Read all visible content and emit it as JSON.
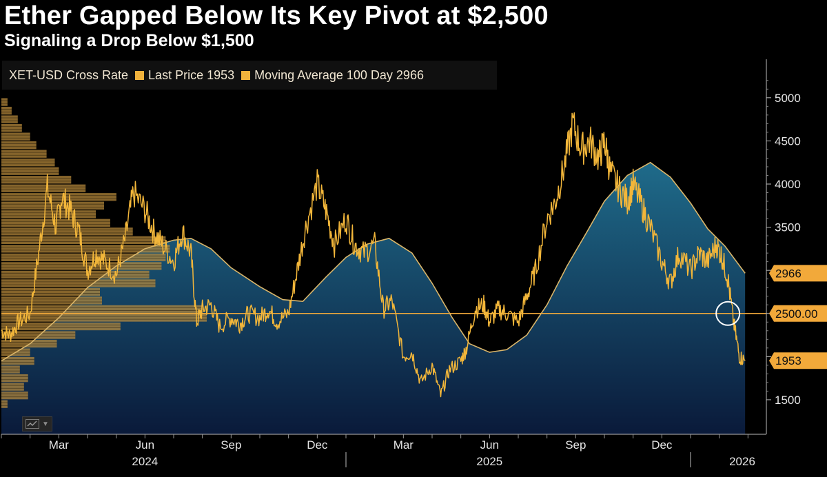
{
  "header": {
    "title": "Ether Gapped Below Its Key Pivot at $2,500",
    "subtitle": "Signaling a Drop Below $1,500"
  },
  "legend": {
    "items": [
      "XET-USD Cross Rate",
      "Last Price 1953",
      "Moving Average 100 Day 2966"
    ]
  },
  "colors": {
    "background": "#000000",
    "price": "#f2b63a",
    "ma": "#d9b56a",
    "pivot": "#f2a93a",
    "fill_top": "#1f6b8a",
    "fill_bottom": "#0a1a3a",
    "profile": "#b98a3c"
  },
  "chart_data": {
    "type": "line",
    "title": "Ether Gapped Below Its Key Pivot at $2,500",
    "subtitle": "Signaling a Drop Below $1,500",
    "x_tick_labels": [
      "Mar",
      "Jun",
      "Sep",
      "Dec",
      "Mar",
      "Jun",
      "Sep",
      "Dec"
    ],
    "x_tick_month_index": [
      2,
      5,
      8,
      11,
      14,
      17,
      20,
      23
    ],
    "year_labels": [
      "2024",
      "2025",
      "2026"
    ],
    "year_label_month_index": [
      5,
      17,
      25.8
    ],
    "year_separator_month_index": [
      12,
      24
    ],
    "xlim_months": [
      0,
      26.4
    ],
    "ylim": [
      1100,
      5350
    ],
    "y_ticks": [
      1500,
      2000,
      2500,
      3000,
      3500,
      4000,
      4500,
      5000
    ],
    "y_tick_labels": [
      "1500",
      "",
      "",
      "",
      "3500",
      "4000",
      "4500",
      "5000"
    ],
    "pivot_level": 2500,
    "pivot_label": "2500.00",
    "badges": [
      {
        "label": "2966",
        "value": 2966
      },
      {
        "label": "2500.00",
        "value": 2500
      },
      {
        "label": "1953",
        "value": 1953
      }
    ],
    "series": [
      {
        "name": "XET-USD Cross Rate",
        "x": [
          0.0,
          0.3,
          0.6,
          1.0,
          1.3,
          1.6,
          1.9,
          2.1,
          2.4,
          2.7,
          3.0,
          3.3,
          3.6,
          4.0,
          4.3,
          4.6,
          5.0,
          5.3,
          5.6,
          6.0,
          6.3,
          6.6,
          6.8,
          7.0,
          7.3,
          7.6,
          8.0,
          8.3,
          8.6,
          9.0,
          9.3,
          9.6,
          10.0,
          10.3,
          10.6,
          11.0,
          11.3,
          11.6,
          12.0,
          12.3,
          12.6,
          13.0,
          13.3,
          13.6,
          14.0,
          14.3,
          14.6,
          15.0,
          15.3,
          15.6,
          16.0,
          16.2,
          16.5,
          16.8,
          17.0,
          17.3,
          17.6,
          18.0,
          18.3,
          18.6,
          19.0,
          19.3,
          19.6,
          19.9,
          20.2,
          20.5,
          20.8,
          21.0,
          21.2,
          21.5,
          21.8,
          22.0,
          22.3,
          22.6,
          23.0,
          23.3,
          23.6,
          24.0,
          24.3,
          24.6,
          24.9,
          25.1,
          25.3,
          25.5,
          25.7,
          25.9
        ],
        "values": [
          2300,
          2250,
          2400,
          2500,
          3200,
          3950,
          3500,
          3850,
          3700,
          3450,
          3000,
          3200,
          3100,
          2950,
          3350,
          3900,
          3700,
          3450,
          3300,
          3100,
          3450,
          3200,
          2400,
          2550,
          2600,
          2350,
          2450,
          2380,
          2500,
          2450,
          2550,
          2400,
          2500,
          3000,
          3500,
          4000,
          3700,
          3300,
          3600,
          3300,
          3200,
          3300,
          2550,
          2650,
          2000,
          2050,
          1700,
          1900,
          1550,
          1850,
          1950,
          2100,
          2550,
          2600,
          2400,
          2550,
          2500,
          2400,
          2700,
          3000,
          3600,
          3800,
          4200,
          4700,
          4400,
          4500,
          4300,
          4500,
          4150,
          3950,
          3800,
          4000,
          3750,
          3500,
          3100,
          2850,
          3200,
          3000,
          3200,
          3100,
          3300,
          3150,
          2900,
          2400,
          2000,
          1953
        ]
      },
      {
        "name": "Moving Average 100 Day",
        "x": [
          0.0,
          1.0,
          2.0,
          3.0,
          4.0,
          5.0,
          6.0,
          6.6,
          7.3,
          8.0,
          9.0,
          9.8,
          10.5,
          11.3,
          12.0,
          12.7,
          13.5,
          14.3,
          15.0,
          15.7,
          16.3,
          17.0,
          17.6,
          18.3,
          19.0,
          19.7,
          20.4,
          21.0,
          21.8,
          22.6,
          23.3,
          24.0,
          24.6,
          25.2,
          25.9
        ],
        "values": [
          1950,
          2150,
          2450,
          2800,
          3050,
          3250,
          3350,
          3370,
          3250,
          3030,
          2810,
          2660,
          2640,
          2920,
          3150,
          3300,
          3370,
          3200,
          2850,
          2450,
          2150,
          2050,
          2080,
          2250,
          2600,
          3050,
          3450,
          3800,
          4100,
          4250,
          4080,
          3780,
          3480,
          3280,
          2966
        ]
      }
    ],
    "volume_profile": {
      "name": "Price volume profile",
      "price_levels": [
        1450,
        1550,
        1650,
        1750,
        1850,
        1950,
        2050,
        2150,
        2250,
        2350,
        2450,
        2550,
        2650,
        2750,
        2850,
        2950,
        3050,
        3150,
        3250,
        3350,
        3450,
        3550,
        3650,
        3750,
        3850,
        3950,
        4050,
        4150,
        4250,
        4350,
        4450,
        4550,
        4650,
        4750,
        4850,
        4950
      ],
      "relative_volume": [
        0.03,
        0.13,
        0.11,
        0.13,
        0.09,
        0.16,
        0.14,
        0.27,
        0.36,
        0.58,
        1.0,
        0.98,
        0.49,
        0.48,
        0.75,
        0.72,
        0.78,
        0.8,
        0.82,
        0.8,
        0.64,
        0.53,
        0.46,
        0.5,
        0.56,
        0.41,
        0.34,
        0.28,
        0.26,
        0.22,
        0.17,
        0.14,
        0.1,
        0.08,
        0.05,
        0.03
      ]
    }
  }
}
